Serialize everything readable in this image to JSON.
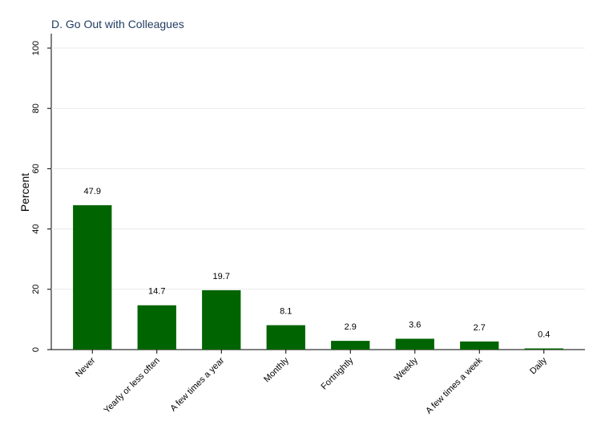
{
  "chart_data": {
    "type": "bar",
    "title": "D. Go Out with Colleagues",
    "y_label": "Percent",
    "categories": [
      "Never",
      "Yearly or less often",
      "A few times a year",
      "Monthly",
      "Fortnightly",
      "Weekly",
      "A few times a week",
      "Daily"
    ],
    "values": [
      47.9,
      14.7,
      19.7,
      8.1,
      2.9,
      3.6,
      2.7,
      0.4
    ],
    "color": "#006400",
    "ylim": [
      0,
      100
    ],
    "yticks": [
      0,
      20,
      40,
      60,
      80,
      100
    ],
    "grid": true
  }
}
